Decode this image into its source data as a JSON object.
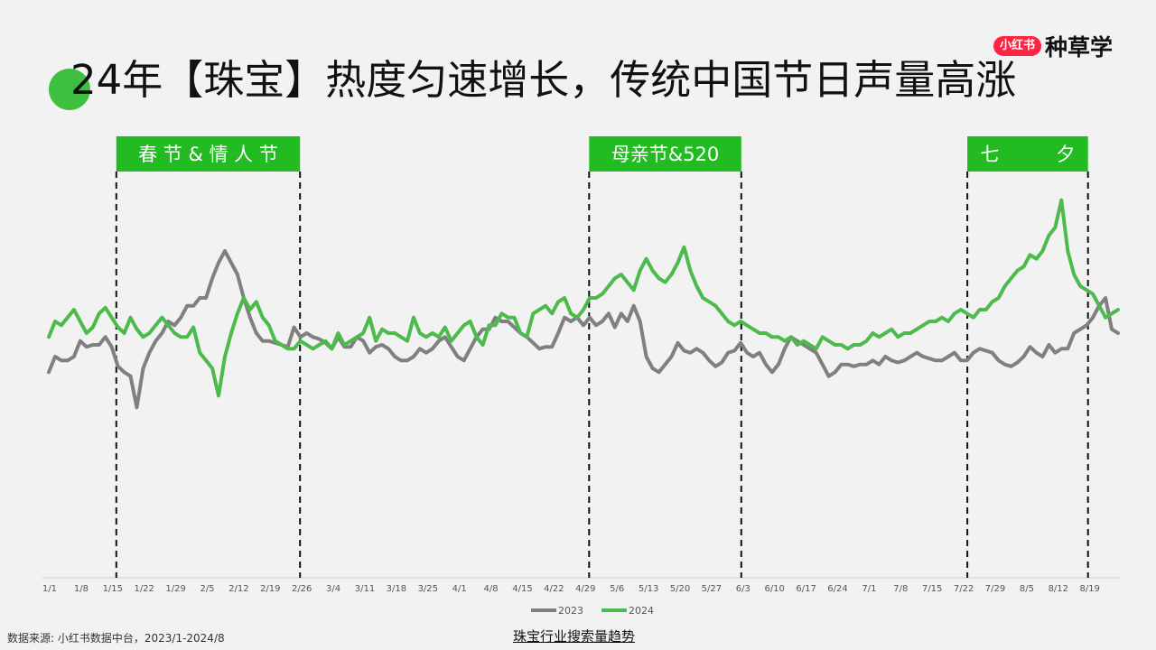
{
  "header": {
    "title": "24年【珠宝】热度匀速增长，传统中国节日声量高涨",
    "logo_badge": "小红书",
    "logo_text": "种草学"
  },
  "footer": {
    "source": "数据来源: 小红书数据中台，2023/1-2024/8",
    "caption": "珠宝行业搜索量趋势"
  },
  "colors": {
    "s2023": "#808080",
    "s2024": "#4cbb4c",
    "box": "#22bb22"
  },
  "chart_data": {
    "type": "line",
    "x_ticks": [
      "1/1",
      "1/8",
      "1/15",
      "1/22",
      "1/29",
      "2/5",
      "2/12",
      "2/19",
      "2/26",
      "3/4",
      "3/11",
      "3/18",
      "3/25",
      "4/1",
      "4/8",
      "4/15",
      "4/22",
      "4/29",
      "5/6",
      "5/13",
      "5/20",
      "5/27",
      "6/3",
      "6/10",
      "6/17",
      "6/24",
      "7/1",
      "7/8",
      "7/15",
      "7/22",
      "7/29",
      "8/5",
      "8/12",
      "8/19"
    ],
    "events": [
      {
        "label": "春 节 & 情 人 节",
        "start": "1/15",
        "end": "2/26"
      },
      {
        "label": "母亲节&520",
        "start": "4/29",
        "end": "6/3"
      },
      {
        "label": "七　　　夕",
        "start": "7/22",
        "end": "8/19"
      }
    ],
    "legend": [
      "2023",
      "2024"
    ],
    "series": [
      {
        "name": "2023",
        "values": [
          42,
          50,
          48,
          48,
          50,
          58,
          55,
          56,
          56,
          60,
          55,
          45,
          42,
          40,
          24,
          44,
          52,
          58,
          62,
          68,
          66,
          70,
          76,
          76,
          80,
          80,
          90,
          98,
          104,
          98,
          92,
          80,
          70,
          62,
          58,
          58,
          57,
          56,
          55,
          65,
          60,
          62,
          60,
          59,
          57,
          54,
          60,
          55,
          55,
          60,
          58,
          52,
          55,
          56,
          54,
          50,
          48,
          48,
          50,
          54,
          52,
          54,
          58,
          60,
          55,
          50,
          48,
          54,
          60,
          64,
          64,
          70,
          68,
          68,
          65,
          62,
          60,
          57,
          54,
          55,
          55,
          62,
          70,
          68,
          70,
          66,
          70,
          66,
          68,
          72,
          65,
          72,
          68,
          76,
          68,
          50,
          44,
          42,
          46,
          50,
          57,
          53,
          52,
          54,
          52,
          48,
          45,
          47,
          52,
          53,
          57,
          52,
          50,
          52,
          46,
          42,
          46,
          54,
          60,
          58,
          56,
          54,
          52,
          46,
          40,
          42,
          46,
          46,
          45,
          46,
          46,
          48,
          46,
          50,
          48,
          47,
          48,
          50,
          52,
          50,
          49,
          48,
          48,
          50,
          52,
          48,
          48,
          52,
          54,
          53,
          52,
          48,
          46,
          45,
          47,
          50,
          55,
          52,
          50,
          56,
          52,
          54,
          54,
          62,
          64,
          66,
          70,
          76,
          80,
          64,
          62
        ]
      },
      {
        "name": "2024",
        "values": [
          60,
          68,
          66,
          70,
          74,
          68,
          62,
          65,
          72,
          75,
          70,
          65,
          62,
          70,
          64,
          60,
          62,
          66,
          70,
          66,
          62,
          60,
          60,
          65,
          52,
          48,
          44,
          30,
          50,
          62,
          72,
          80,
          74,
          78,
          70,
          66,
          58,
          56,
          54,
          54,
          58,
          56,
          54,
          56,
          58,
          54,
          62,
          56,
          58,
          60,
          62,
          70,
          58,
          64,
          62,
          62,
          60,
          58,
          70,
          62,
          60,
          62,
          60,
          65,
          58,
          62,
          66,
          68,
          60,
          56,
          66,
          66,
          72,
          70,
          70,
          62,
          60,
          72,
          74,
          76,
          72,
          78,
          80,
          72,
          70,
          74,
          80,
          80,
          82,
          86,
          90,
          92,
          88,
          84,
          94,
          100,
          94,
          90,
          88,
          92,
          98,
          106,
          94,
          86,
          80,
          78,
          76,
          72,
          68,
          66,
          68,
          66,
          64,
          62,
          62,
          60,
          60,
          58,
          60,
          56,
          58,
          56,
          54,
          60,
          58,
          56,
          56,
          54,
          56,
          56,
          58,
          62,
          60,
          62,
          64,
          60,
          62,
          62,
          64,
          66,
          68,
          68,
          70,
          68,
          72,
          74,
          72,
          70,
          74,
          74,
          78,
          80,
          86,
          90,
          94,
          96,
          102,
          100,
          104,
          112,
          116,
          130,
          104,
          92,
          86,
          84,
          82,
          76,
          70,
          72,
          74
        ]
      }
    ],
    "y_range": [
      20,
      140
    ]
  }
}
